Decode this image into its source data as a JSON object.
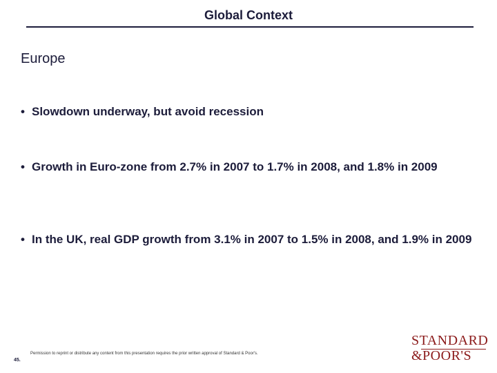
{
  "slide": {
    "title": "Global Context",
    "section_heading": "Europe",
    "bullets": [
      {
        "marker": "•",
        "text": "Slowdown underway, but avoid recession"
      },
      {
        "marker": "•",
        "text": "Growth in Euro-zone from 2.7% in 2007 to 1.7% in 2008, and 1.8% in 2009"
      },
      {
        "marker": "•",
        "text": "In the UK, real GDP growth from 3.1% in 2007 to 1.5% in 2008, and 1.9% in 2009"
      }
    ]
  },
  "footer": {
    "page_number": "45.",
    "permission_text": "Permission to reprint or distribute any content from this presentation requires the prior written approval of Standard & Poor's.",
    "logo": {
      "line1": "STANDARD",
      "line2": "&POOR'S",
      "color": "#8b1a1a"
    }
  }
}
